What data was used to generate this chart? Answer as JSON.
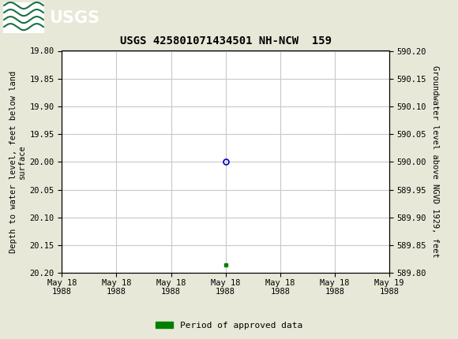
{
  "title": "USGS 425801071434501 NH-NCW  159",
  "ylabel_left": "Depth to water level, feet below land\nsurface",
  "ylabel_right": "Groundwater level above NGVD 1929, feet",
  "ylim_left": [
    20.2,
    19.8
  ],
  "ylim_right": [
    589.8,
    590.2
  ],
  "yticks_left": [
    19.8,
    19.85,
    19.9,
    19.95,
    20.0,
    20.05,
    20.1,
    20.15,
    20.2
  ],
  "yticks_right": [
    590.2,
    590.15,
    590.1,
    590.05,
    590.0,
    589.95,
    589.9,
    589.85,
    589.8
  ],
  "xlim": [
    0,
    6
  ],
  "xtick_labels": [
    "May 18\n1988",
    "May 18\n1988",
    "May 18\n1988",
    "May 18\n1988",
    "May 18\n1988",
    "May 18\n1988",
    "May 19\n1988"
  ],
  "xtick_positions": [
    0,
    1,
    2,
    3,
    4,
    5,
    6
  ],
  "data_point_x": 3,
  "data_point_y": 20.0,
  "approved_point_x": 3,
  "approved_point_y": 20.185,
  "header_color": "#1a7042",
  "bg_color": "#e8e8d8",
  "grid_color": "#c8c8c8",
  "plot_bg_color": "#ffffff",
  "circle_color": "#0000cc",
  "approved_color": "#008000",
  "legend_label": "Period of approved data",
  "font_family": "monospace",
  "title_fontsize": 10,
  "tick_fontsize": 7.5,
  "label_fontsize": 7.5
}
